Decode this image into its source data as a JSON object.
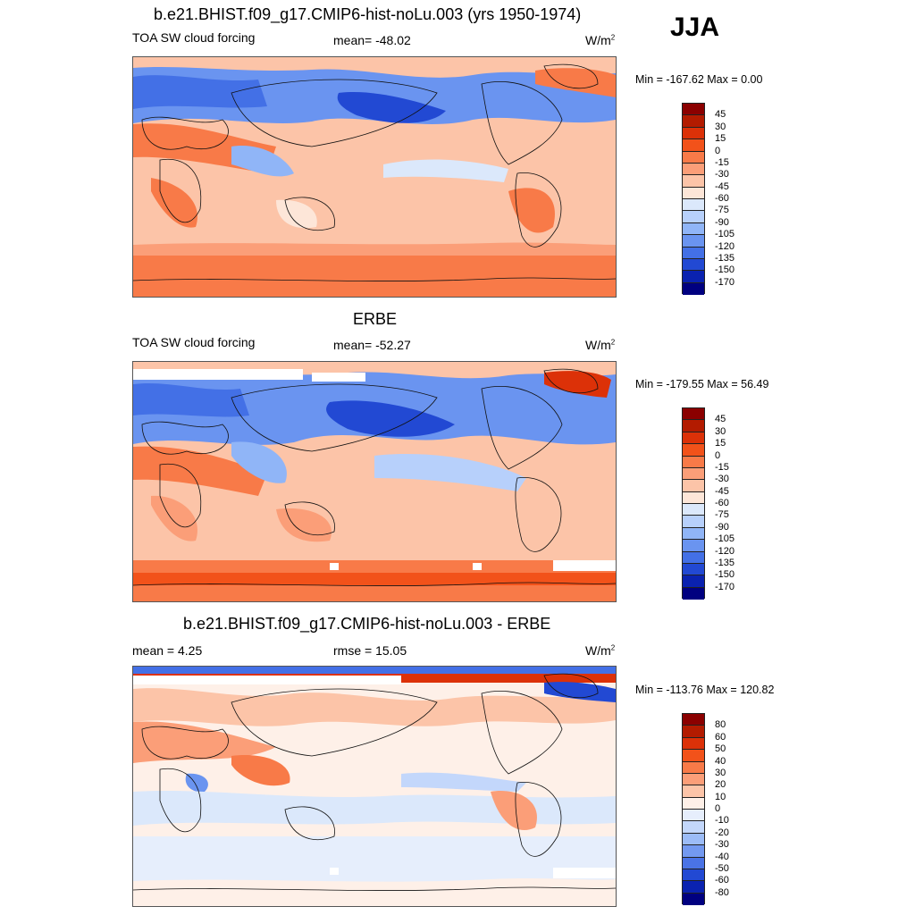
{
  "season": "JJA",
  "panels": [
    {
      "title": "b.e21.BHIST.f09_g17.CMIP6-hist-noLu.003 (yrs 1950-1974)",
      "left_label": "TOA SW cloud forcing",
      "center_label": "mean= -48.02",
      "units_base": "W/m",
      "units_exp": "2",
      "minmax": "Min = -167.62 Max =   0.00",
      "map_type": "absolute",
      "colorbar": "abs"
    },
    {
      "title": "ERBE",
      "left_label": "TOA SW cloud forcing",
      "center_label": "mean= -52.27",
      "units_base": "W/m",
      "units_exp": "2",
      "minmax": "Min = -179.55 Max =  56.49",
      "map_type": "absolute",
      "colorbar": "abs"
    },
    {
      "title": "b.e21.BHIST.f09_g17.CMIP6-hist-noLu.003 - ERBE",
      "left_label": "mean =   4.25",
      "center_label": "rmse =  15.05",
      "units_base": "W/m",
      "units_exp": "2",
      "minmax": "Min = -113.76 Max = 120.82",
      "map_type": "difference",
      "colorbar": "diff"
    }
  ],
  "colorbars": {
    "abs": {
      "labels": [
        "45",
        "30",
        "15",
        "0",
        "-15",
        "-30",
        "-45",
        "-60",
        "-75",
        "-90",
        "-105",
        "-120",
        "-135",
        "-150",
        "-170"
      ],
      "colors": [
        "#8b0000",
        "#b31b00",
        "#dc3108",
        "#f2521a",
        "#f87a48",
        "#fb9e78",
        "#fcc4a8",
        "#fde6d8",
        "#dbe8fb",
        "#b7d0fb",
        "#90b5f7",
        "#6a94f0",
        "#4370e6",
        "#2249d3",
        "#0a22b0",
        "#000080"
      ]
    },
    "diff": {
      "labels": [
        "80",
        "60",
        "50",
        "40",
        "30",
        "20",
        "10",
        "0",
        "-10",
        "-20",
        "-30",
        "-40",
        "-50",
        "-60",
        "-80"
      ],
      "colors": [
        "#8b0000",
        "#b31b00",
        "#dc3108",
        "#f2521a",
        "#f87a48",
        "#fb9e78",
        "#fcc4a8",
        "#fef0e8",
        "#e6eefc",
        "#c3d7fb",
        "#9cbcf7",
        "#7399f0",
        "#4a73e6",
        "#2249d3",
        "#0a22b0",
        "#000080"
      ]
    }
  }
}
